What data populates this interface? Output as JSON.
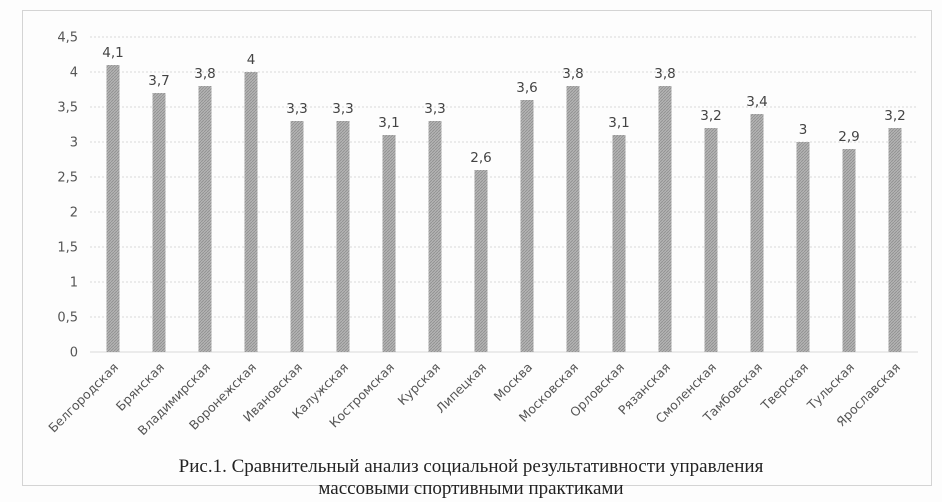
{
  "chart_data": {
    "type": "bar",
    "categories": [
      "Белгородская",
      "Брянская",
      "Владимирская",
      "Воронежская",
      "Ивановская",
      "Калужская",
      "Костромская",
      "Курская",
      "Липецкая",
      "Москва",
      "Московская",
      "Орловская",
      "Рязанская",
      "Смоленская",
      "Тамбовская",
      "Тверская",
      "Тульская",
      "Ярославская"
    ],
    "values": [
      4.1,
      3.7,
      3.8,
      4,
      3.3,
      3.3,
      3.1,
      3.3,
      2.6,
      3.6,
      3.8,
      3.1,
      3.8,
      3.2,
      3.4,
      3,
      2.9,
      3.2
    ],
    "data_labels": [
      "4,1",
      "3,7",
      "3,8",
      "4",
      "3,3",
      "3,3",
      "3,1",
      "3,3",
      "2,6",
      "3,6",
      "3,8",
      "3,1",
      "3,8",
      "3,2",
      "3,4",
      "3",
      "2,9",
      "3,2"
    ],
    "y_ticks": [
      0,
      0.5,
      1,
      1.5,
      2,
      2.5,
      3,
      3.5,
      4,
      4.5
    ],
    "y_tick_labels": [
      "0",
      "0,5",
      "1",
      "1,5",
      "2",
      "2,5",
      "3",
      "3,5",
      "4",
      "4,5"
    ],
    "ylim": [
      0,
      4.5
    ],
    "grid": true,
    "legend": "none",
    "bar_color": "#a9a9a9",
    "grid_color": "#d9d9d9",
    "title": "",
    "xlabel": "",
    "ylabel": ""
  },
  "caption": {
    "line1": "Рис.1. Сравнительный анализ социальной результативности управления",
    "line2": "массовыми спортивными практиками"
  }
}
